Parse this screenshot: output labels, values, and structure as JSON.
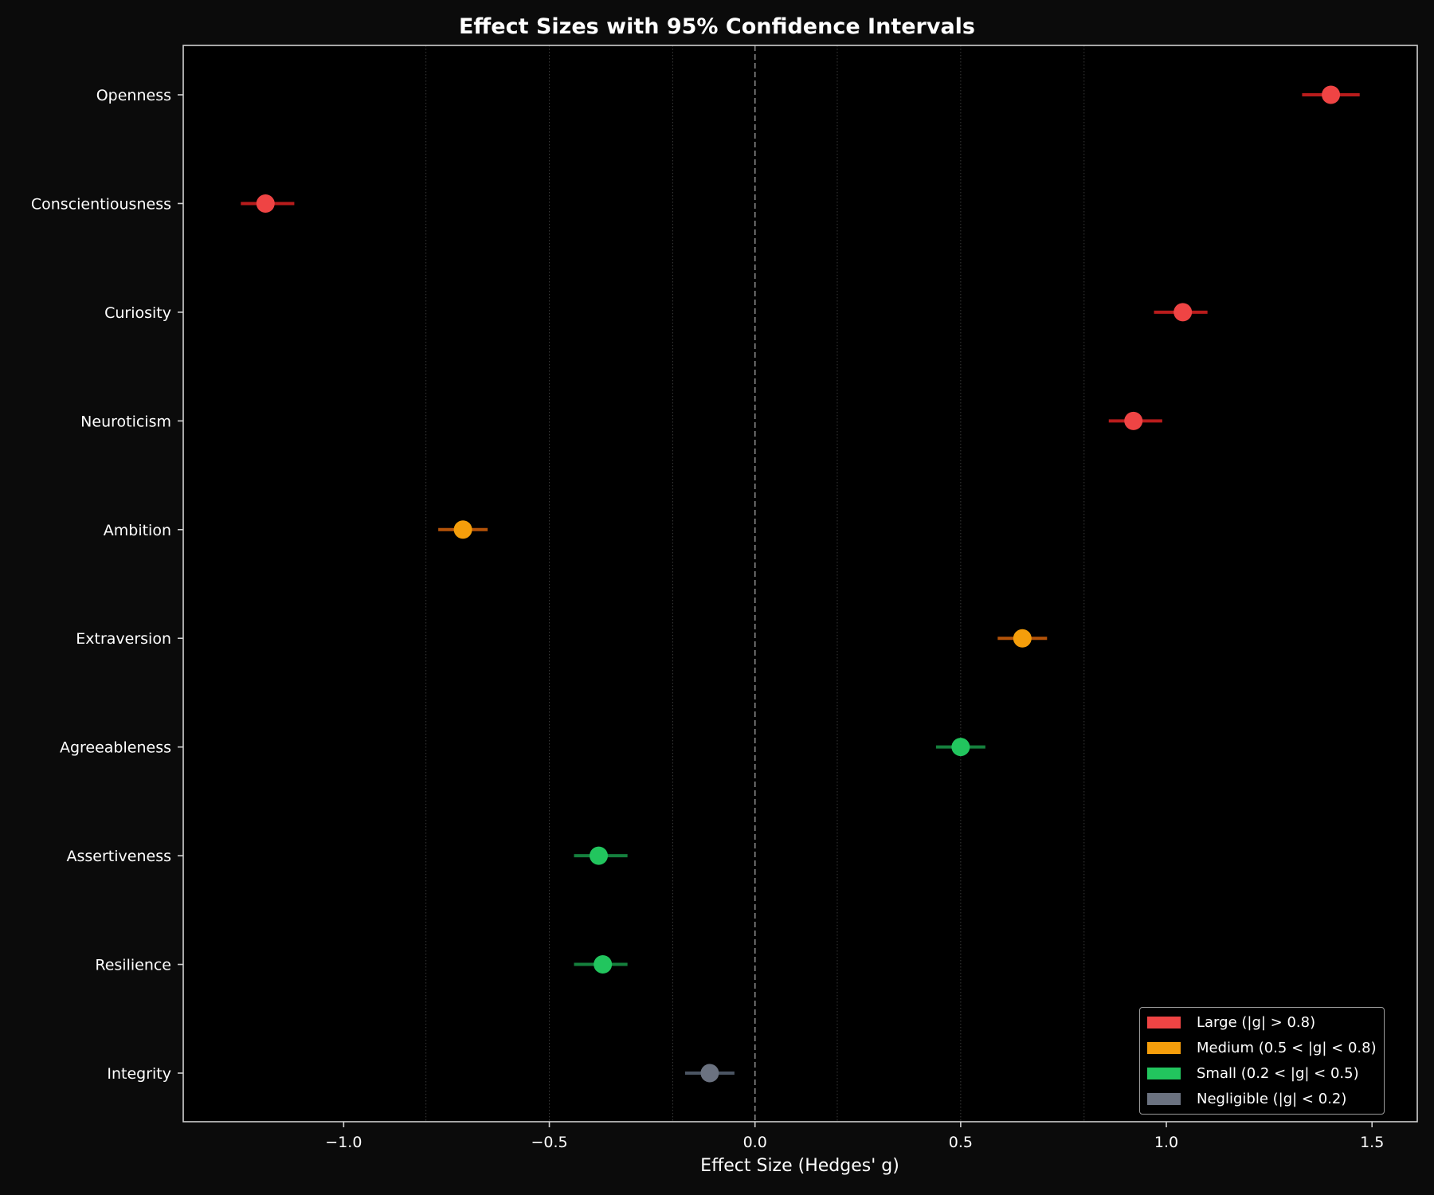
{
  "chart_data": {
    "type": "scatter",
    "subtype": "forest-plot",
    "title": "Effect Sizes with 95% Confidence Intervals",
    "xlabel": "Effect Size (Hedges' g)",
    "ylabel": "",
    "xlim": [
      -1.39,
      1.61
    ],
    "xticks": [
      -1.0,
      -0.5,
      0.0,
      0.5,
      1.0,
      1.5
    ],
    "xtick_labels": [
      "−1.0",
      "−0.5",
      "0.0",
      "0.5",
      "1.0",
      "1.5"
    ],
    "reference_line": {
      "x": 0.0,
      "style": "dashed"
    },
    "grid_lines": {
      "x": [
        -0.8,
        -0.5,
        -0.2,
        0.2,
        0.5,
        0.8
      ],
      "style": "dotted"
    },
    "categories": [
      "Openness",
      "Conscientiousness",
      "Curiosity",
      "Neuroticism",
      "Ambition",
      "Extraversion",
      "Agreeableness",
      "Assertiveness",
      "Resilience",
      "Integrity"
    ],
    "points": [
      {
        "label": "Openness",
        "g": 1.4,
        "ci_low": 1.33,
        "ci_high": 1.47,
        "magnitude": "Large"
      },
      {
        "label": "Conscientiousness",
        "g": -1.19,
        "ci_low": -1.25,
        "ci_high": -1.12,
        "magnitude": "Large"
      },
      {
        "label": "Curiosity",
        "g": 1.04,
        "ci_low": 0.97,
        "ci_high": 1.1,
        "magnitude": "Large"
      },
      {
        "label": "Neuroticism",
        "g": 0.92,
        "ci_low": 0.86,
        "ci_high": 0.99,
        "magnitude": "Large"
      },
      {
        "label": "Ambition",
        "g": -0.71,
        "ci_low": -0.77,
        "ci_high": -0.65,
        "magnitude": "Medium"
      },
      {
        "label": "Extraversion",
        "g": 0.65,
        "ci_low": 0.59,
        "ci_high": 0.71,
        "magnitude": "Medium"
      },
      {
        "label": "Agreeableness",
        "g": 0.5,
        "ci_low": 0.44,
        "ci_high": 0.56,
        "magnitude": "Small"
      },
      {
        "label": "Assertiveness",
        "g": -0.38,
        "ci_low": -0.44,
        "ci_high": -0.31,
        "magnitude": "Small"
      },
      {
        "label": "Resilience",
        "g": -0.37,
        "ci_low": -0.44,
        "ci_high": -0.31,
        "magnitude": "Small"
      },
      {
        "label": "Integrity",
        "g": -0.11,
        "ci_low": -0.17,
        "ci_high": -0.05,
        "magnitude": "Negligible"
      }
    ],
    "legend": {
      "position": "lower right",
      "entries": [
        {
          "key": "Large",
          "label": "Large (|g| > 0.8)",
          "color": "#ef4444",
          "ci_color": "#b91c1c"
        },
        {
          "key": "Medium",
          "label": "Medium (0.5 < |g| < 0.8)",
          "color": "#f59e0b",
          "ci_color": "#b45309"
        },
        {
          "key": "Small",
          "label": "Small (0.2 < |g| < 0.5)",
          "color": "#22c55e",
          "ci_color": "#15803d"
        },
        {
          "key": "Negligible",
          "label": "Negligible (|g| < 0.2)",
          "color": "#6b7280",
          "ci_color": "#4b5563"
        }
      ]
    }
  },
  "colors": {
    "figure_bg": "#0b0b0b",
    "axes_bg": "#000000",
    "text": "#ffffff",
    "spine": "#d0d0d0",
    "grid": "#3a3a3a",
    "zero_line": "#8a8a8a"
  }
}
